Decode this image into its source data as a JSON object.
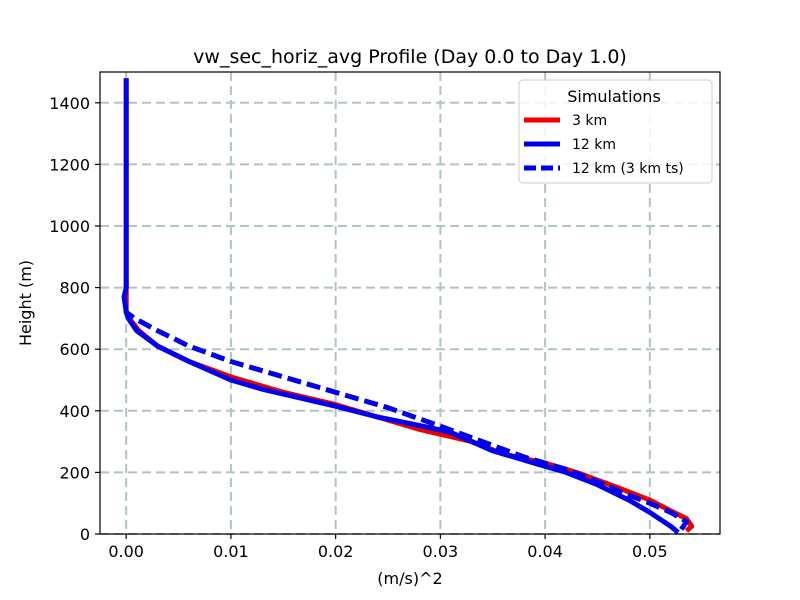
{
  "chart_data": {
    "type": "line",
    "title": "vw_sec_horiz_avg Profile (Day 0.0 to Day 1.0)",
    "xlabel": "(m/s)^2",
    "ylabel": "Height (m)",
    "xlim": [
      -0.0025,
      0.0567
    ],
    "ylim": [
      0,
      1500
    ],
    "xticks": [
      0.0,
      0.01,
      0.02,
      0.03,
      0.04,
      0.05
    ],
    "xtick_labels": [
      "0.00",
      "0.01",
      "0.02",
      "0.03",
      "0.04",
      "0.05"
    ],
    "yticks": [
      0,
      200,
      400,
      600,
      800,
      1000,
      1200,
      1400
    ],
    "ytick_labels": [
      "0",
      "200",
      "400",
      "600",
      "800",
      "1000",
      "1200",
      "1400"
    ],
    "grid": true,
    "legend": {
      "title": "Simulations",
      "placement": "top-right"
    },
    "series": [
      {
        "name": "3 km",
        "color": "#ee0000",
        "linestyle": "solid",
        "points": [
          [
            0.0535,
            10
          ],
          [
            0.054,
            25
          ],
          [
            0.0535,
            50
          ],
          [
            0.052,
            75
          ],
          [
            0.05,
            110
          ],
          [
            0.047,
            150
          ],
          [
            0.043,
            200
          ],
          [
            0.04,
            230
          ],
          [
            0.036,
            260
          ],
          [
            0.033,
            300
          ],
          [
            0.028,
            340
          ],
          [
            0.024,
            380
          ],
          [
            0.02,
            420
          ],
          [
            0.015,
            460
          ],
          [
            0.01,
            510
          ],
          [
            0.006,
            560
          ],
          [
            0.003,
            610
          ],
          [
            0.0012,
            660
          ],
          [
            0.0003,
            700
          ],
          [
            0.0,
            720
          ],
          [
            0.0,
            800
          ],
          [
            0.0,
            1000
          ],
          [
            0.0,
            1200
          ],
          [
            0.0,
            1480
          ]
        ]
      },
      {
        "name": "12 km",
        "color": "#0000ee",
        "linestyle": "solid",
        "points": [
          [
            0.0527,
            5
          ],
          [
            0.052,
            25
          ],
          [
            0.05,
            70
          ],
          [
            0.048,
            110
          ],
          [
            0.045,
            160
          ],
          [
            0.042,
            200
          ],
          [
            0.039,
            230
          ],
          [
            0.035,
            270
          ],
          [
            0.031,
            330
          ],
          [
            0.029,
            345
          ],
          [
            0.024,
            380
          ],
          [
            0.02,
            415
          ],
          [
            0.013,
            470
          ],
          [
            0.01,
            500
          ],
          [
            0.006,
            560
          ],
          [
            0.003,
            610
          ],
          [
            0.001,
            660
          ],
          [
            0.0002,
            700
          ],
          [
            0.0,
            720
          ],
          [
            -0.0002,
            770
          ],
          [
            0.0,
            800
          ],
          [
            0.0,
            1000
          ],
          [
            0.0,
            1200
          ],
          [
            0.0,
            1480
          ]
        ]
      },
      {
        "name": "12 km (3 km ts)",
        "color": "#0000ee",
        "linestyle": "dashed",
        "points": [
          [
            0.053,
            15
          ],
          [
            0.0535,
            40
          ],
          [
            0.052,
            70
          ],
          [
            0.05,
            100
          ],
          [
            0.047,
            140
          ],
          [
            0.045,
            170
          ],
          [
            0.042,
            210
          ],
          [
            0.038,
            250
          ],
          [
            0.034,
            300
          ],
          [
            0.03,
            350
          ],
          [
            0.025,
            410
          ],
          [
            0.02,
            460
          ],
          [
            0.015,
            510
          ],
          [
            0.01,
            560
          ],
          [
            0.006,
            610
          ],
          [
            0.003,
            660
          ],
          [
            0.0008,
            700
          ],
          [
            0.0,
            720
          ]
        ]
      }
    ]
  }
}
